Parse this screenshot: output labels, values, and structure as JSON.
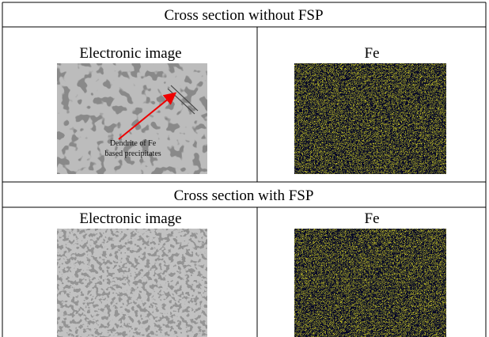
{
  "table": {
    "rows": [
      {
        "title": "Cross section without FSP",
        "cells": [
          {
            "label": "Electronic image",
            "annotation": [
              "Dendrite of Fe",
              "based precipitates"
            ]
          },
          {
            "label": "Fe"
          }
        ]
      },
      {
        "title": "Cross section with FSP",
        "cells": [
          {
            "label": "Electronic image"
          },
          {
            "label": "Fe"
          }
        ]
      }
    ]
  }
}
